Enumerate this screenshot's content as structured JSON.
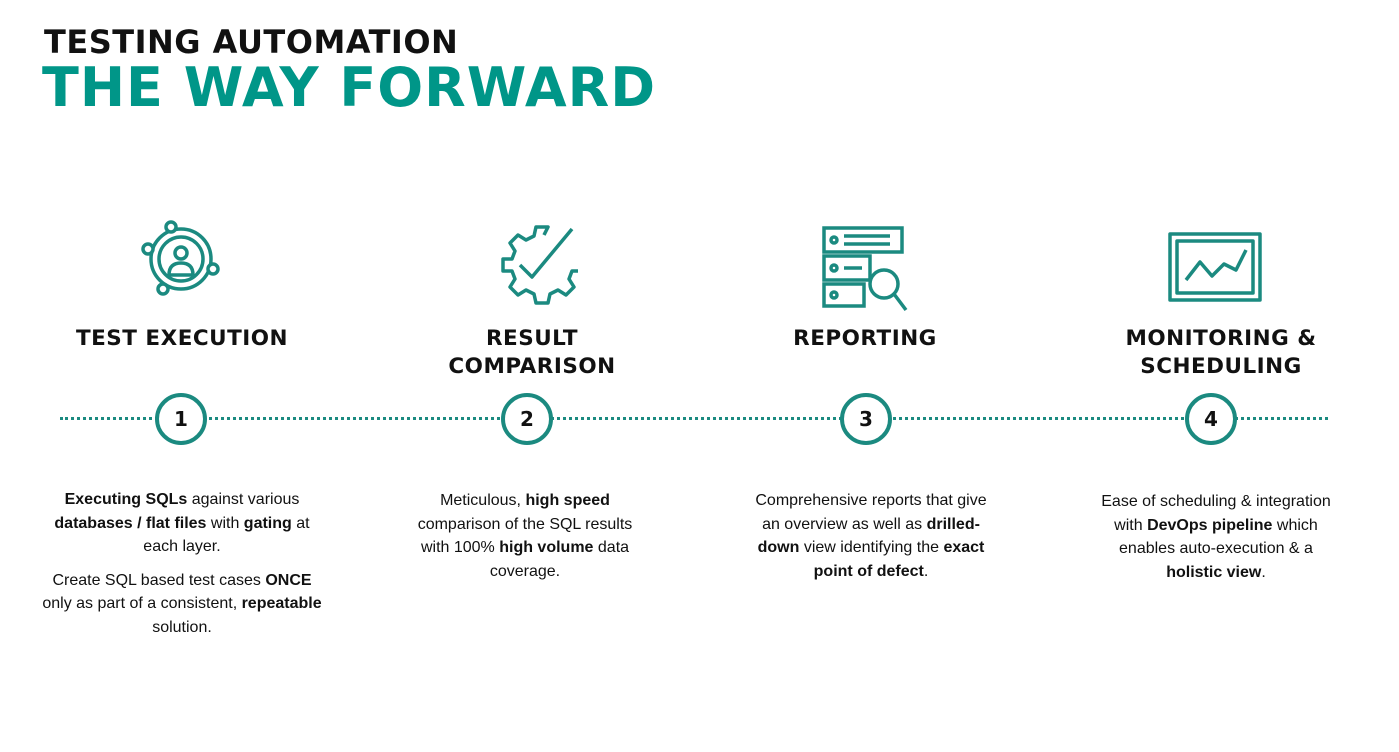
{
  "header": {
    "title_line1": "TESTING AUTOMATION",
    "title_line2": "THE WAY FORWARD"
  },
  "colors": {
    "accent": "#009688",
    "timeline": "#1b8a80",
    "text": "#111111"
  },
  "steps": [
    {
      "number": "1",
      "icon": "user-network-icon",
      "heading_line1": "TEST EXECUTION",
      "heading_line2": "",
      "paragraphs": [
        [
          {
            "text": "Executing SQLs",
            "bold": true
          },
          {
            "text": " against various ",
            "bold": false
          },
          {
            "text": "databases / flat files",
            "bold": true
          },
          {
            "text": " with ",
            "bold": false
          },
          {
            "text": "gating",
            "bold": true
          },
          {
            "text": " at each layer.",
            "bold": false
          }
        ],
        [
          {
            "text": "Create SQL based test cases ",
            "bold": false
          },
          {
            "text": "ONCE",
            "bold": true
          },
          {
            "text": " only as part of a consistent, ",
            "bold": false
          },
          {
            "text": "repeatable",
            "bold": true
          },
          {
            "text": " solution.",
            "bold": false
          }
        ]
      ]
    },
    {
      "number": "2",
      "icon": "gear-check-icon",
      "heading_line1": "RESULT",
      "heading_line2": "COMPARISON",
      "paragraphs": [
        [
          {
            "text": "Meticulous, ",
            "bold": false
          },
          {
            "text": "high speed",
            "bold": true
          },
          {
            "text": " comparison of the SQL results with 100% ",
            "bold": false
          },
          {
            "text": "high volume",
            "bold": true
          },
          {
            "text": " data coverage.",
            "bold": false
          }
        ]
      ]
    },
    {
      "number": "3",
      "icon": "report-search-icon",
      "heading_line1": "REPORTING",
      "heading_line2": "",
      "paragraphs": [
        [
          {
            "text": "Comprehensive reports that give an overview as well as ",
            "bold": false
          },
          {
            "text": "drilled-down",
            "bold": true
          },
          {
            "text": " view identifying the ",
            "bold": false
          },
          {
            "text": "exact point of defect",
            "bold": true
          },
          {
            "text": ".",
            "bold": false
          }
        ]
      ]
    },
    {
      "number": "4",
      "icon": "monitor-chart-icon",
      "heading_line1": "MONITORING &",
      "heading_line2": "SCHEDULING",
      "paragraphs": [
        [
          {
            "text": "Ease of scheduling & integration with ",
            "bold": false
          },
          {
            "text": "DevOps pipeline",
            "bold": true
          },
          {
            "text": " which enables auto-execution & a ",
            "bold": false
          },
          {
            "text": "holistic view",
            "bold": true
          },
          {
            "text": ".",
            "bold": false
          }
        ]
      ]
    }
  ]
}
